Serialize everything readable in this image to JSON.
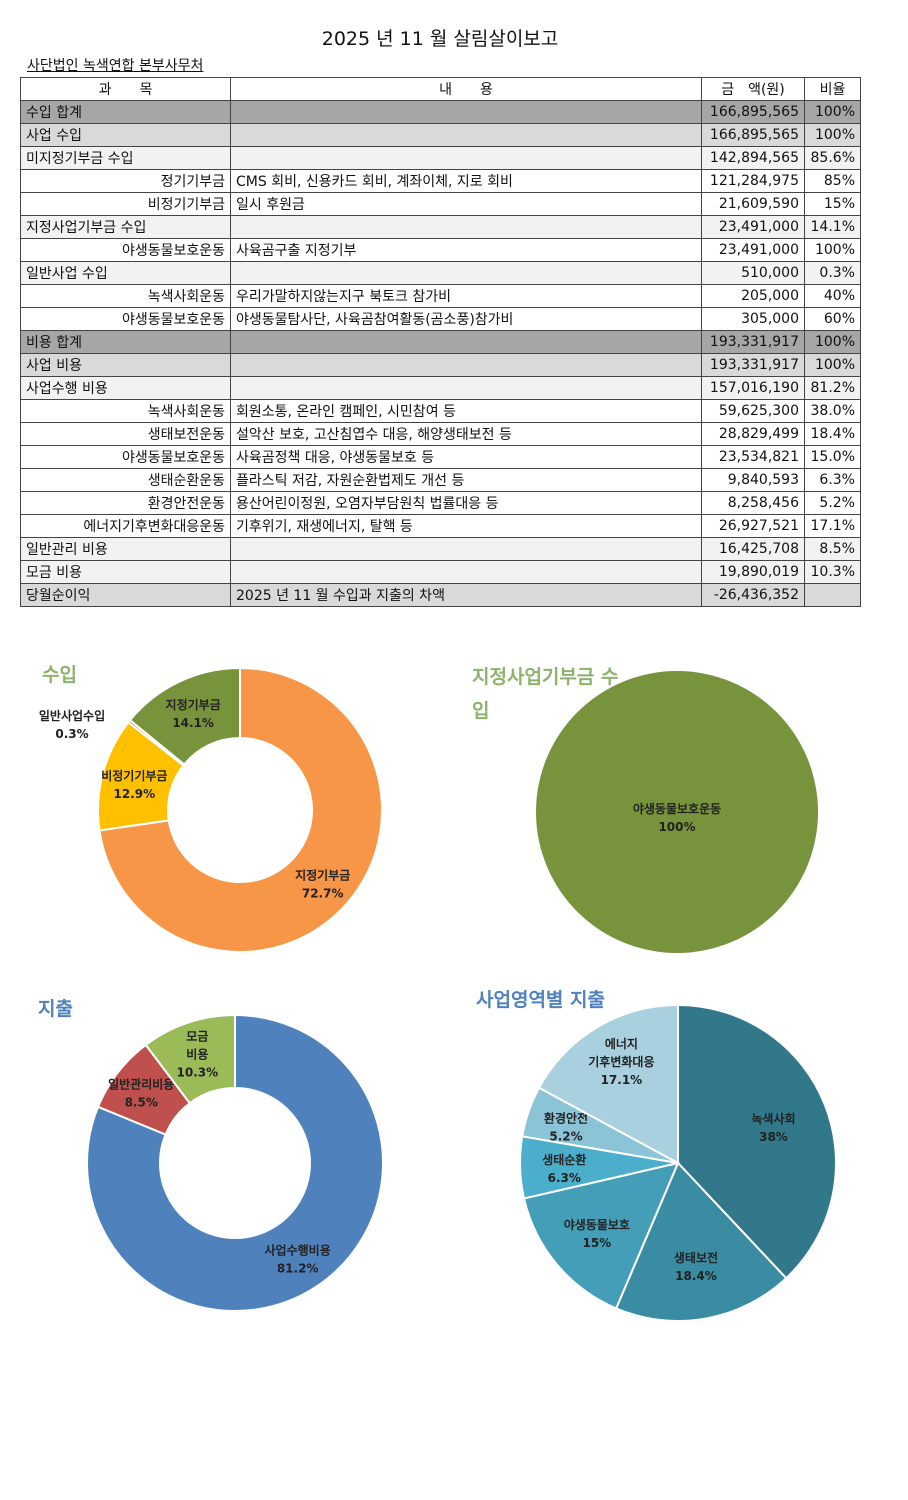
{
  "title": "2025 년 11 월 살림살이보고",
  "org": "사단법인 녹색연합 본부사무처",
  "headers": [
    "과　　목",
    "내　　용",
    "금　액(원)",
    "비율"
  ],
  "rows": [
    {
      "level": 0,
      "item": "수입 합계",
      "desc": "",
      "amount": "166,895,565",
      "ratio": "100%"
    },
    {
      "level": 1,
      "item": "사업 수입",
      "desc": "",
      "amount": "166,895,565",
      "ratio": "100%"
    },
    {
      "level": 2,
      "item": "미지정기부금 수입",
      "desc": "",
      "amount": "142,894,565",
      "ratio": "85.6%"
    },
    {
      "level": 3,
      "item": "정기기부금",
      "desc": "CMS 회비, 신용카드 회비, 계좌이체, 지로 회비",
      "amount": "121,284,975",
      "ratio": "85%"
    },
    {
      "level": 3,
      "item": "비정기기부금",
      "desc": "일시 후원금",
      "amount": "21,609,590",
      "ratio": "15%"
    },
    {
      "level": 2,
      "item": "지정사업기부금 수입",
      "desc": "",
      "amount": "23,491,000",
      "ratio": "14.1%"
    },
    {
      "level": 3,
      "item": "야생동물보호운동",
      "desc": "사육곰구출 지정기부",
      "amount": "23,491,000",
      "ratio": "100%"
    },
    {
      "level": 2,
      "item": "일반사업 수입",
      "desc": "",
      "amount": "510,000",
      "ratio": "0.3%"
    },
    {
      "level": 3,
      "item": "녹색사회운동",
      "desc": "우리가말하지않는지구 북토크 참가비",
      "amount": "205,000",
      "ratio": "40%"
    },
    {
      "level": 3,
      "item": "야생동물보호운동",
      "desc": "야생동물탐사단, 사육곰참여활동(곰소풍)참가비",
      "amount": "305,000",
      "ratio": "60%"
    },
    {
      "level": 0,
      "item": "비용 합계",
      "desc": "",
      "amount": "193,331,917",
      "ratio": "100%"
    },
    {
      "level": 1,
      "item": "사업 비용",
      "desc": "",
      "amount": "193,331,917",
      "ratio": "100%"
    },
    {
      "level": 2,
      "item": "사업수행 비용",
      "desc": "",
      "amount": "157,016,190",
      "ratio": "81.2%"
    },
    {
      "level": 3,
      "item": "녹색사회운동",
      "desc": "회원소통, 온라인 캠페인, 시민참여 등",
      "amount": "59,625,300",
      "ratio": "38.0%"
    },
    {
      "level": 3,
      "item": "생태보전운동",
      "desc": "설악산 보호, 고산침엽수 대응, 해양생태보전 등",
      "amount": "28,829,499",
      "ratio": "18.4%"
    },
    {
      "level": 3,
      "item": "야생동물보호운동",
      "desc": "사육곰정책 대응, 야생동물보호 등",
      "amount": "23,534,821",
      "ratio": "15.0%"
    },
    {
      "level": 3,
      "item": "생태순환운동",
      "desc": "플라스틱 저감, 자원순환법제도 개선 등",
      "amount": "9,840,593",
      "ratio": "6.3%"
    },
    {
      "level": 3,
      "item": "환경안전운동",
      "desc": "용산어린이정원, 오염자부담원칙 법률대응 등",
      "amount": "8,258,456",
      "ratio": "5.2%"
    },
    {
      "level": 3,
      "item": "에너지기후변화대응운동",
      "desc": "기후위기, 재생에너지, 탈핵 등",
      "amount": "26,927,521",
      "ratio": "17.1%"
    },
    {
      "level": 2,
      "item": "일반관리 비용",
      "desc": "",
      "amount": "16,425,708",
      "ratio": "8.5%"
    },
    {
      "level": 2,
      "item": "모금 비용",
      "desc": "",
      "amount": "19,890,019",
      "ratio": "10.3%"
    },
    {
      "level": 1,
      "item": "당월순이익",
      "desc": "2025 년 11 월 수입과 지출의 차액",
      "amount": "-26,436,352",
      "ratio": ""
    }
  ],
  "chart_data": [
    {
      "type": "pie",
      "donut": true,
      "title": "수입",
      "title_color": "#8db36b",
      "slices": [
        {
          "label": "지정기부금",
          "value": 72.7,
          "text": "72.7%",
          "color": "#f79646"
        },
        {
          "label": "비정기기부금",
          "value": 12.9,
          "text": "12.9%",
          "color": "#ffc000"
        },
        {
          "label": "일반사업수입",
          "value": 0.3,
          "text": "0.3%",
          "color": "#e46c0a"
        },
        {
          "label": "지정기부금",
          "value": 14.1,
          "text": "14.1%",
          "color": "#77933c"
        }
      ]
    },
    {
      "type": "pie",
      "donut": false,
      "title": "지정사업기부금 수입",
      "title_color": "#8db36b",
      "slices": [
        {
          "label": "야생동물보호운동",
          "value": 100,
          "text": "100%",
          "color": "#77933c"
        }
      ]
    },
    {
      "type": "pie",
      "donut": true,
      "title": "지출",
      "title_color": "#4f81bd",
      "slices": [
        {
          "label": "사업수행비용",
          "value": 81.2,
          "text": "81.2%",
          "color": "#4f81bd"
        },
        {
          "label": "일반관리비용",
          "value": 8.5,
          "text": "8.5%",
          "color": "#c0504d"
        },
        {
          "label": "모금 비용",
          "value": 10.3,
          "text": "10.3%",
          "color": "#9bbb59"
        }
      ]
    },
    {
      "type": "pie",
      "donut": false,
      "title": "사업영역별 지출",
      "title_color": "#4f81bd",
      "slices": [
        {
          "label": "녹색사회",
          "value": 38,
          "text": "38%",
          "color": "#31788b"
        },
        {
          "label": "생태보전",
          "value": 18.4,
          "text": "18.4%",
          "color": "#3a8ca3"
        },
        {
          "label": "야생동물보호",
          "value": 15,
          "text": "15%",
          "color": "#449eb8"
        },
        {
          "label": "생태순환",
          "value": 6.3,
          "text": "6.3%",
          "color": "#4bafcb"
        },
        {
          "label": "환경안전",
          "value": 5.2,
          "text": "5.2%",
          "color": "#8ac4d6"
        },
        {
          "label": "에너지 기후변화대응",
          "value": 17.1,
          "text": "17.1%",
          "color": "#a9d0de"
        }
      ]
    }
  ]
}
